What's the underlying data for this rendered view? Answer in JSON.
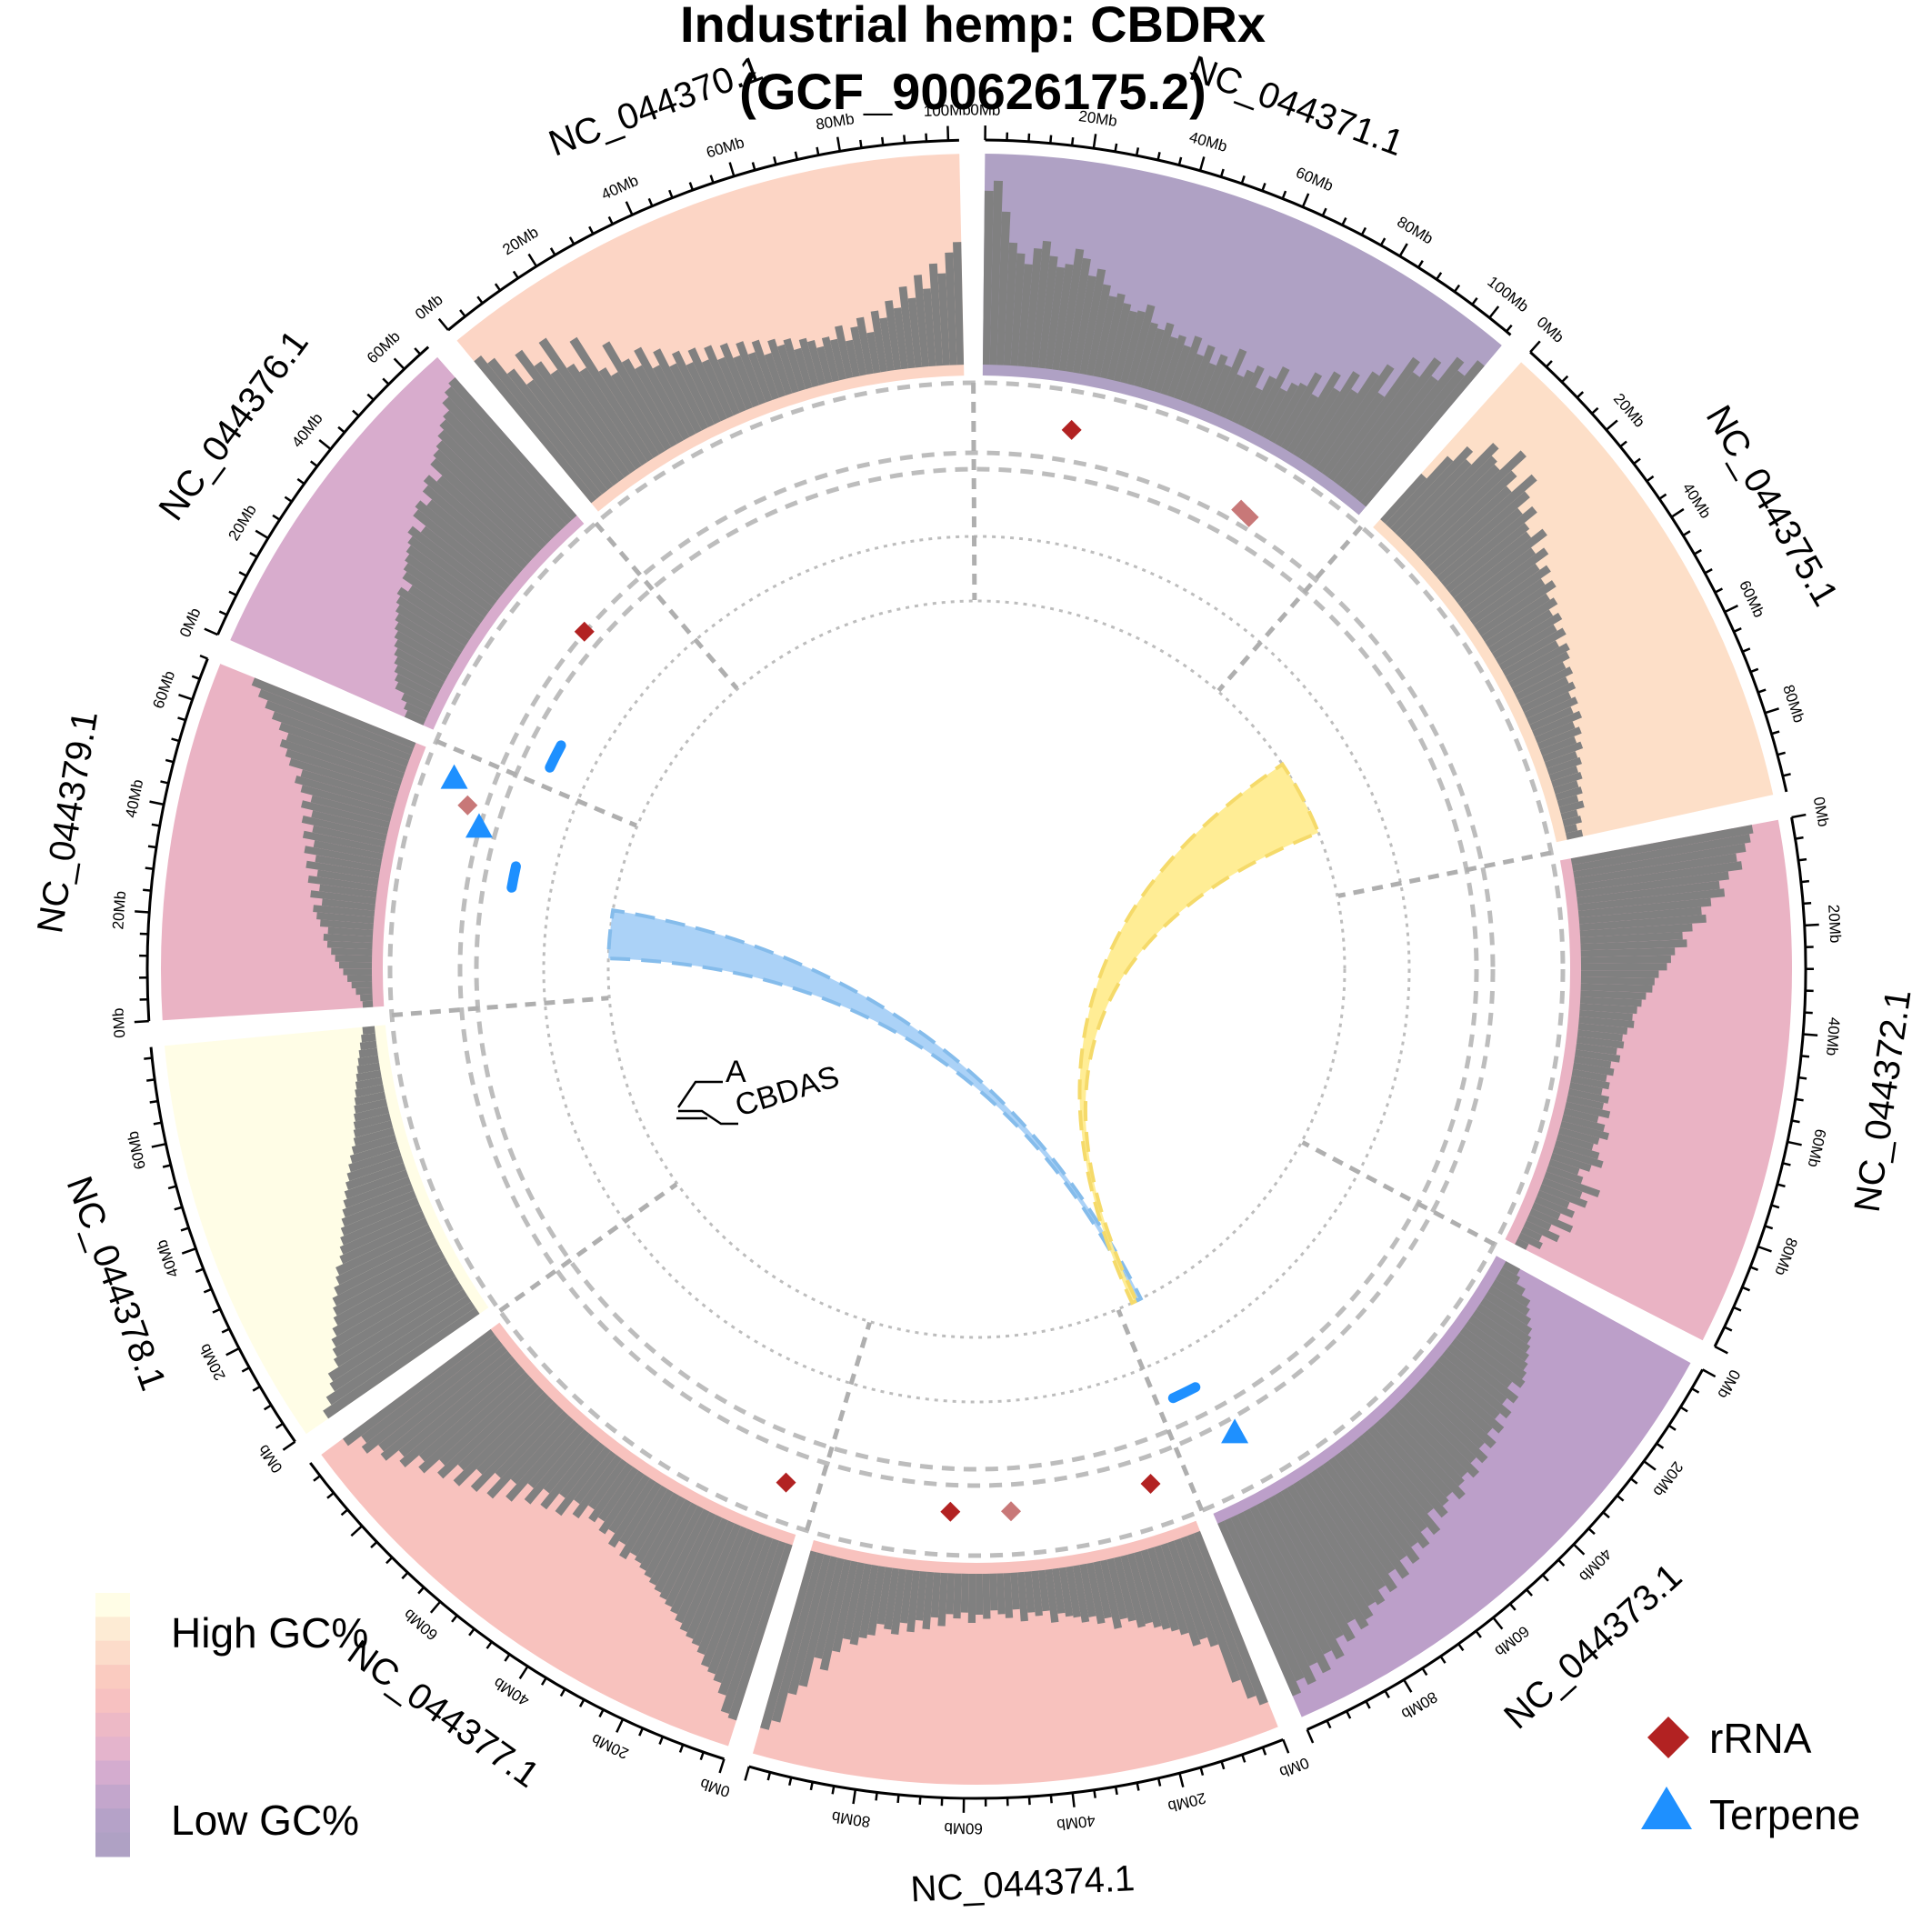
{
  "title": [
    "Industrial hemp: CBDRx",
    "(GCF_900626175.2)"
  ],
  "colors": {
    "gc_scale": [
      "#FFFDE6",
      "#FDEBD4",
      "#FCDCCA",
      "#FACBC0",
      "#F7C1C1",
      "#EDB9C6",
      "#E4B4CC",
      "#D4ACCF",
      "#C3A6CC",
      "#B5A2C8",
      "#AFA1C4"
    ],
    "gc_histogram": "#808080",
    "rRNA": "#B22222",
    "rRNA_light": "#C87878",
    "terpene": "#1E90FF",
    "link_blue": "#A6D0F7",
    "link_blue_stroke": "#85BCEB",
    "link_yellow": "#FFEC8F",
    "link_yellow_stroke": "#F5DA6A",
    "grid": "#BDBDBD",
    "divider": "#AFAFAF"
  },
  "chart_data": {
    "type": "circos",
    "tick_unit": "Mb",
    "chromosomes": [
      {
        "name": "NC_044371.1",
        "length": 105,
        "tick_labels": [
          "0Mb",
          "20Mb",
          "40Mb",
          "60Mb",
          "80Mb",
          "100Mb"
        ],
        "color": "#AFA1C4",
        "gc_histogram": [
          0.85,
          0.9,
          0.75,
          0.6,
          0.55,
          0.5,
          0.58,
          0.62,
          0.55,
          0.5,
          0.52,
          0.6,
          0.56,
          0.48,
          0.52,
          0.45,
          0.4,
          0.42,
          0.38,
          0.35,
          0.36,
          0.4,
          0.32,
          0.3,
          0.34,
          0.28,
          0.3,
          0.26,
          0.32,
          0.24,
          0.3,
          0.22,
          0.28,
          0.24,
          0.34,
          0.22,
          0.26,
          0.3,
          0.2,
          0.28,
          0.35,
          0.25,
          0.3,
          0.32,
          0.4,
          0.3,
          0.45,
          0.38,
          0.5,
          0.42,
          0.55,
          0.62,
          0.48,
          0.72,
          0.66,
          0.78,
          0.7,
          0.85,
          0.8,
          0.9
        ]
      },
      {
        "name": "NC_044375.1",
        "length": 95,
        "tick_labels": [
          "0Mb",
          "20Mb",
          "40Mb",
          "60Mb",
          "80Mb"
        ],
        "color": "#FDDFC8",
        "gc_histogram": [
          0.3,
          0.45,
          0.55,
          0.5,
          0.65,
          0.6,
          0.58,
          0.72,
          0.62,
          0.55,
          0.68,
          0.6,
          0.52,
          0.58,
          0.5,
          0.48,
          0.55,
          0.45,
          0.5,
          0.42,
          0.46,
          0.4,
          0.44,
          0.38,
          0.4,
          0.35,
          0.38,
          0.33,
          0.36,
          0.3,
          0.34,
          0.32,
          0.28,
          0.3,
          0.26,
          0.28,
          0.24,
          0.26,
          0.22,
          0.25,
          0.2,
          0.22,
          0.18,
          0.2,
          0.16,
          0.17,
          0.14,
          0.15,
          0.12,
          0.13,
          0.1,
          0.12,
          0.08,
          0.09,
          0.06,
          0.08
        ]
      },
      {
        "name": "NC_044372.1",
        "length": 100,
        "tick_labels": [
          "0Mb",
          "20Mb",
          "40Mb",
          "60Mb",
          "80Mb"
        ],
        "color": "#EAB3C4",
        "gc_histogram": [
          0.9,
          0.88,
          0.85,
          0.8,
          0.82,
          0.75,
          0.7,
          0.72,
          0.65,
          0.6,
          0.62,
          0.55,
          0.5,
          0.52,
          0.46,
          0.44,
          0.42,
          0.38,
          0.36,
          0.35,
          0.32,
          0.3,
          0.28,
          0.26,
          0.27,
          0.24,
          0.22,
          0.23,
          0.2,
          0.22,
          0.18,
          0.2,
          0.17,
          0.19,
          0.16,
          0.2,
          0.18,
          0.22,
          0.17,
          0.21,
          0.24,
          0.2,
          0.18,
          0.22,
          0.25,
          0.2,
          0.15,
          0.18,
          0.28,
          0.2,
          0.24,
          0.16,
          0.2,
          0.14,
          0.22,
          0.12,
          0.18,
          0.1,
          0.12,
          0.06
        ]
      },
      {
        "name": "NC_044373.1",
        "length": 100,
        "tick_labels": [
          "0Mb",
          "20Mb",
          "40Mb",
          "60Mb",
          "80Mb"
        ],
        "color": "#BC9FC9",
        "gc_histogram": [
          0.08,
          0.1,
          0.15,
          0.2,
          0.22,
          0.25,
          0.28,
          0.3,
          0.32,
          0.34,
          0.36,
          0.38,
          0.4,
          0.35,
          0.42,
          0.38,
          0.44,
          0.4,
          0.46,
          0.42,
          0.48,
          0.44,
          0.5,
          0.46,
          0.52,
          0.48,
          0.5,
          0.55,
          0.5,
          0.52,
          0.56,
          0.5,
          0.6,
          0.55,
          0.62,
          0.58,
          0.65,
          0.6,
          0.68,
          0.62,
          0.7,
          0.66,
          0.72,
          0.7,
          0.75,
          0.78,
          0.72,
          0.8,
          0.76,
          0.85,
          0.8,
          0.88,
          0.82,
          0.9,
          0.86,
          0.92
        ]
      },
      {
        "name": "NC_044374.1",
        "length": 100,
        "tick_labels": [
          "0Mb",
          "20Mb",
          "40Mb",
          "60Mb",
          "80Mb"
        ],
        "color": "#F8C2BE",
        "gc_histogram": [
          0.9,
          0.85,
          0.75,
          0.55,
          0.5,
          0.52,
          0.45,
          0.42,
          0.4,
          0.38,
          0.35,
          0.36,
          0.32,
          0.3,
          0.34,
          0.28,
          0.3,
          0.26,
          0.28,
          0.25,
          0.24,
          0.22,
          0.26,
          0.2,
          0.22,
          0.2,
          0.24,
          0.18,
          0.22,
          0.2,
          0.18,
          0.22,
          0.2,
          0.24,
          0.19,
          0.22,
          0.2,
          0.26,
          0.22,
          0.28,
          0.24,
          0.3,
          0.26,
          0.32,
          0.3,
          0.28,
          0.34,
          0.36,
          0.4,
          0.38,
          0.45,
          0.55,
          0.5,
          0.65,
          0.7,
          0.85,
          0.9
        ]
      },
      {
        "name": "NC_044377.1",
        "length": 95,
        "tick_labels": [
          "0Mb",
          "20Mb",
          "40Mb",
          "60Mb"
        ],
        "color": "#F8C2BE",
        "gc_histogram": [
          0.9,
          0.88,
          0.8,
          0.75,
          0.72,
          0.7,
          0.65,
          0.62,
          0.6,
          0.58,
          0.55,
          0.52,
          0.5,
          0.48,
          0.46,
          0.44,
          0.42,
          0.4,
          0.38,
          0.36,
          0.4,
          0.34,
          0.38,
          0.32,
          0.35,
          0.3,
          0.33,
          0.28,
          0.36,
          0.3,
          0.4,
          0.32,
          0.42,
          0.35,
          0.45,
          0.38,
          0.5,
          0.42,
          0.55,
          0.45,
          0.58,
          0.5,
          0.62,
          0.55,
          0.65,
          0.6,
          0.7,
          0.66,
          0.75,
          0.72,
          0.8,
          0.78,
          0.85,
          0.82,
          0.9
        ]
      },
      {
        "name": "NC_044378.1",
        "length": 78,
        "tick_labels": [
          "0Mb",
          "20Mb",
          "40Mb",
          "60Mb"
        ],
        "color": "#FFFDE6",
        "gc_histogram": [
          0.9,
          0.85,
          0.8,
          0.78,
          0.72,
          0.7,
          0.68,
          0.65,
          0.62,
          0.6,
          0.58,
          0.55,
          0.52,
          0.5,
          0.46,
          0.44,
          0.42,
          0.4,
          0.38,
          0.36,
          0.34,
          0.32,
          0.3,
          0.28,
          0.26,
          0.24,
          0.22,
          0.2,
          0.19,
          0.18,
          0.17,
          0.16,
          0.15,
          0.14,
          0.13,
          0.12,
          0.11,
          0.1,
          0.09,
          0.08,
          0.07,
          0.06
        ]
      },
      {
        "name": "NC_044379.1",
        "length": 68,
        "tick_labels": [
          "0Mb",
          "20Mb",
          "40Mb",
          "60Mb"
        ],
        "color": "#EAB3C4",
        "gc_histogram": [
          0.05,
          0.06,
          0.08,
          0.1,
          0.12,
          0.14,
          0.16,
          0.18,
          0.2,
          0.22,
          0.24,
          0.22,
          0.26,
          0.28,
          0.3,
          0.26,
          0.32,
          0.28,
          0.34,
          0.3,
          0.36,
          0.32,
          0.38,
          0.34,
          0.4,
          0.36,
          0.42,
          0.38,
          0.44,
          0.4,
          0.46,
          0.5,
          0.48,
          0.55,
          0.58,
          0.62,
          0.6,
          0.65,
          0.7,
          0.75,
          0.8,
          0.85
        ]
      },
      {
        "name": "NC_044376.1",
        "length": 66,
        "tick_labels": [
          "0Mb",
          "20Mb",
          "40Mb",
          "60Mb"
        ],
        "color": "#D8ACCD",
        "gc_histogram": [
          0.1,
          0.12,
          0.15,
          0.2,
          0.22,
          0.24,
          0.26,
          0.28,
          0.3,
          0.32,
          0.34,
          0.36,
          0.38,
          0.4,
          0.42,
          0.38,
          0.44,
          0.46,
          0.48,
          0.5,
          0.52,
          0.55,
          0.5,
          0.58,
          0.6,
          0.56,
          0.62,
          0.65,
          0.6,
          0.68,
          0.7,
          0.72,
          0.75,
          0.78,
          0.8,
          0.85,
          0.88,
          0.9
        ]
      },
      {
        "name": "NC_044370.1",
        "length": 102,
        "tick_labels": [
          "0Mb",
          "20Mb",
          "40Mb",
          "60Mb",
          "80Mb",
          "100Mb"
        ],
        "color": "#FCD5C5",
        "gc_histogram": [
          0.9,
          0.85,
          0.75,
          0.65,
          0.8,
          0.7,
          0.62,
          0.78,
          0.6,
          0.55,
          0.7,
          0.5,
          0.45,
          0.6,
          0.48,
          0.42,
          0.5,
          0.38,
          0.45,
          0.35,
          0.4,
          0.32,
          0.38,
          0.3,
          0.36,
          0.28,
          0.34,
          0.26,
          0.32,
          0.25,
          0.3,
          0.22,
          0.28,
          0.24,
          0.26,
          0.2,
          0.24,
          0.22,
          0.18,
          0.22,
          0.2,
          0.26,
          0.18,
          0.24,
          0.28,
          0.2,
          0.3,
          0.26,
          0.34,
          0.3,
          0.4,
          0.34,
          0.45,
          0.38,
          0.5,
          0.45,
          0.55,
          0.6
        ]
      }
    ],
    "features": [
      {
        "type": "rRNA",
        "chromosome": "NC_044371.1",
        "position": 25,
        "track": 0.55,
        "intensity": "dark"
      },
      {
        "type": "rRNA",
        "chromosome": "NC_044371.1",
        "position": 78,
        "track": 0.35,
        "intensity": "light"
      },
      {
        "type": "rRNA",
        "chromosome": "NC_044371.1",
        "position": 81,
        "track": 0.32,
        "intensity": "light"
      },
      {
        "type": "rRNA",
        "chromosome": "NC_044374.1",
        "position": 8,
        "track": 0.5,
        "intensity": "dark"
      },
      {
        "type": "rRNA",
        "chromosome": "NC_044374.1",
        "position": 48,
        "track": 0.5,
        "intensity": "light"
      },
      {
        "type": "rRNA",
        "chromosome": "NC_044374.1",
        "position": 65,
        "track": 0.5,
        "intensity": "dark"
      },
      {
        "type": "rRNA",
        "chromosome": "NC_044377.1",
        "position": 7,
        "track": 0.55,
        "intensity": "dark"
      },
      {
        "type": "rRNA",
        "chromosome": "NC_044379.1",
        "position": 57,
        "track": 0.4,
        "intensity": "light"
      },
      {
        "type": "rRNA",
        "chromosome": "NC_044376.1",
        "position": 45,
        "track": 0.2,
        "intensity": "dark"
      },
      {
        "type": "Terpene",
        "chromosome": "NC_044373.1",
        "position": 85,
        "track": 0.35
      },
      {
        "type": "Terpene",
        "chromosome": "NC_044379.1",
        "position": 52,
        "track": 0.2
      },
      {
        "type": "Terpene",
        "chromosome": "NC_044379.1",
        "position": 63,
        "track": 0.65
      }
    ],
    "gene_clusters": [
      {
        "chromosome": "NC_044373.1",
        "start": 89,
        "end": 97
      },
      {
        "chromosome": "NC_044379.1",
        "start": 36,
        "end": 43
      },
      {
        "chromosome": "NC_044376.1",
        "start": 4,
        "end": 12
      }
    ],
    "links": [
      {
        "color": "blue",
        "from": {
          "chromosome": "NC_044373.1",
          "start": 92,
          "end": 94
        },
        "to": {
          "chromosome": "NC_044379.1",
          "start": 14,
          "end": 34
        }
      },
      {
        "color": "yellow",
        "from": {
          "chromosome": "NC_044373.1",
          "start": 94,
          "end": 96
        },
        "to": {
          "chromosome": "NC_044375.1",
          "start": 38,
          "end": 70
        }
      }
    ],
    "gene_labels": [
      "A",
      "CBDAS"
    ]
  },
  "legend": {
    "gc_high": "High GC%",
    "gc_low": "Low GC%",
    "rRNA_label": "rRNA",
    "terpene_label": "Terpene"
  }
}
